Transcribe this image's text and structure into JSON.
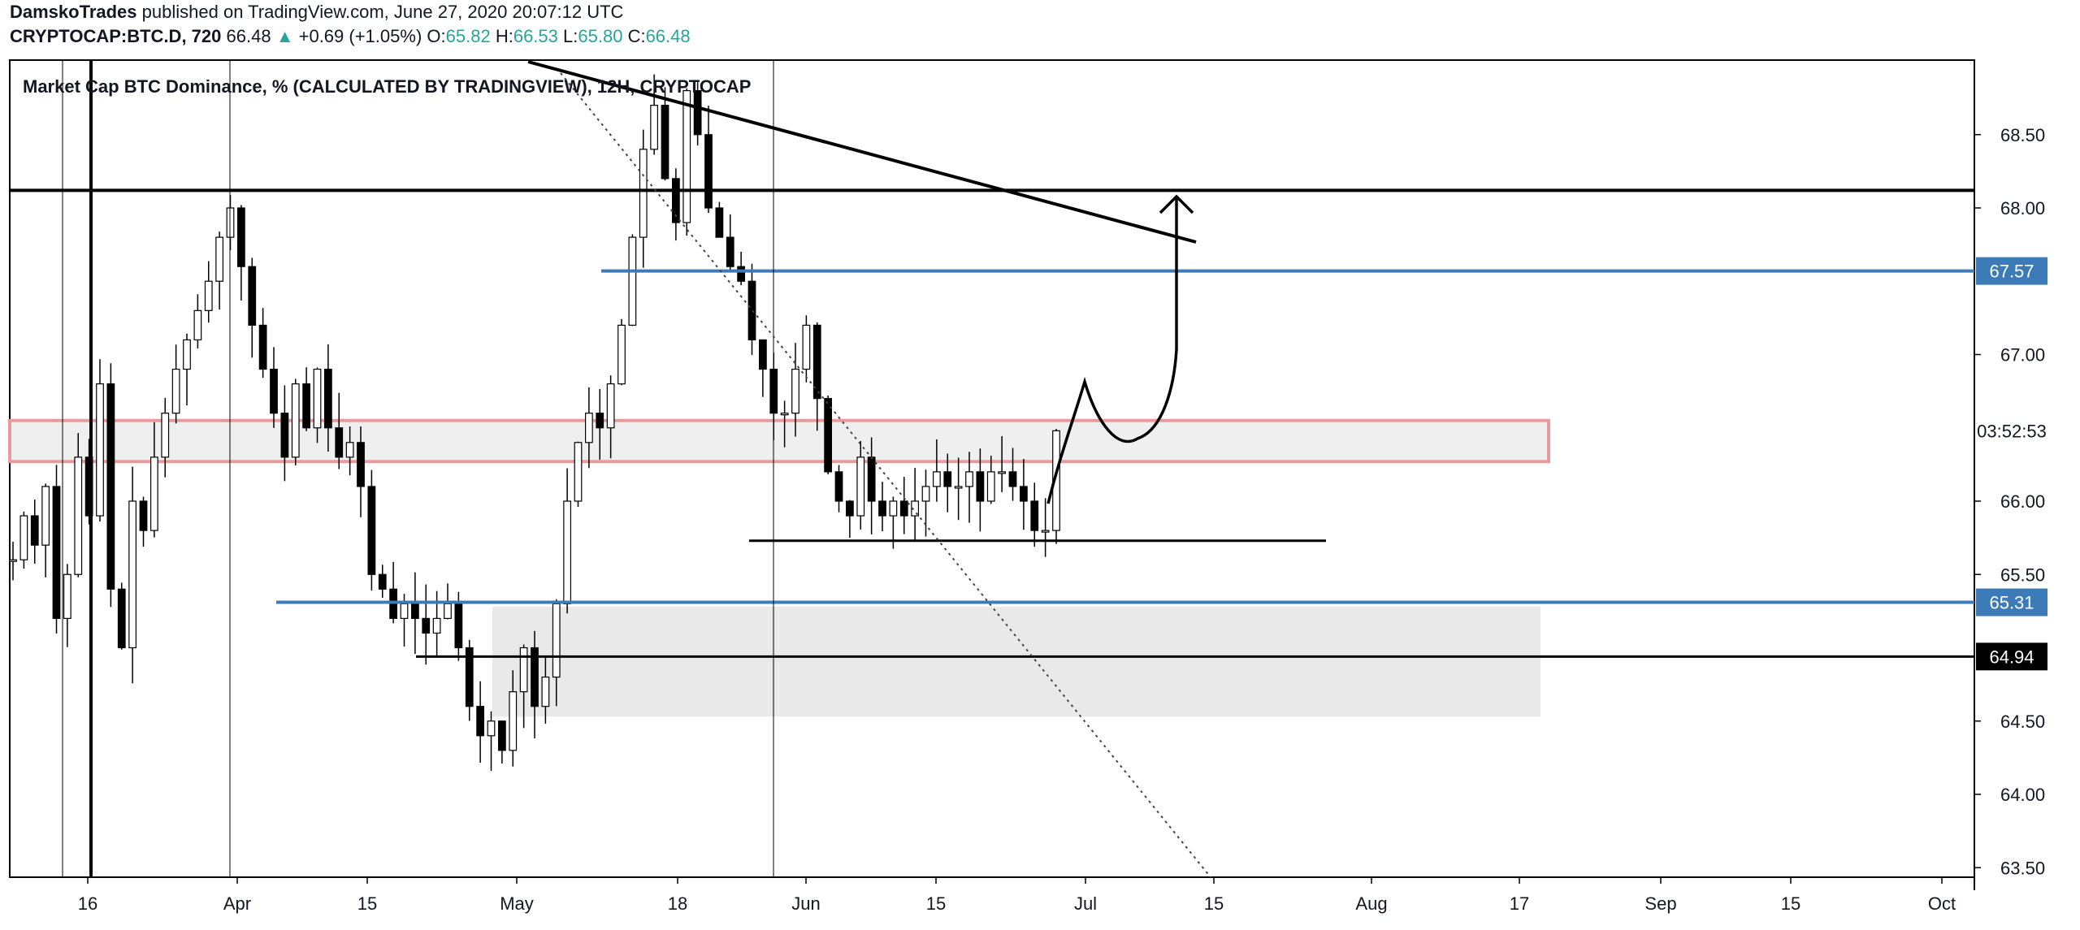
{
  "header": {
    "author": "DamskoTrades",
    "published_text": "published on TradingView.com, June 27, 2020 20:07:12 UTC",
    "symbol": "CRYPTOCAP:BTC.D, 720",
    "last": "66.48",
    "change_arrow": "▲",
    "change": "+0.69 (+1.05%)",
    "o_label": "O:",
    "o_value": "65.82",
    "h_label": "H:",
    "h_value": "66.53",
    "l_label": "L:",
    "l_value": "65.80",
    "c_label": "C:",
    "c_value": "66.48"
  },
  "chart_title": "Market Cap BTC Dominance, % (CALCULATED BY TRADINGVIEW), 12H, CRYPTOCAP",
  "colors": {
    "blue_line": "#3d7ab8",
    "pink_box": "#e99a9c",
    "zone_fill": "#e9e9e9",
    "axis_text": "#131722"
  },
  "chart_data": {
    "type": "candlestick",
    "title": "Market Cap BTC Dominance, % (CALCULATED BY TRADINGVIEW), 12H, CRYPTOCAP",
    "y_range": [
      63.45,
      69.0
    ],
    "y_ticks": [
      "68.50",
      "68.00",
      "67.00",
      "66.00",
      "65.50",
      "64.50",
      "64.00",
      "63.50"
    ],
    "x_ticks": [
      "16",
      "Apr",
      "15",
      "May",
      "18",
      "Jun",
      "15",
      "Jul",
      "15",
      "Aug",
      "17",
      "Sep",
      "15",
      "Oct"
    ],
    "price_tags": [
      {
        "label": "67.57",
        "value": 67.57,
        "style": "blue"
      },
      {
        "label": "03:52:53",
        "value": 66.48,
        "style": "plain"
      },
      {
        "label": "65.31",
        "value": 65.31,
        "style": "blue"
      },
      {
        "label": "64.94",
        "value": 64.94,
        "style": "black"
      }
    ],
    "horizontal_levels": [
      {
        "value": 68.12,
        "style": "black"
      },
      {
        "value": 67.57,
        "style": "blue"
      },
      {
        "value": 65.31,
        "style": "blue"
      },
      {
        "value": 64.94,
        "style": "black"
      },
      {
        "value": 65.73,
        "style": "black"
      }
    ],
    "zones": [
      {
        "from": 66.27,
        "to": 66.55,
        "style": "pink-outlined"
      },
      {
        "from": 64.53,
        "to": 65.28,
        "style": "gray"
      }
    ],
    "close_series": [
      65.6,
      65.9,
      65.7,
      66.1,
      65.2,
      65.5,
      66.3,
      65.9,
      66.8,
      65.4,
      65.0,
      66.0,
      65.8,
      66.3,
      66.6,
      66.9,
      67.1,
      67.3,
      67.5,
      67.8,
      68.0,
      67.6,
      67.2,
      66.9,
      66.6,
      66.3,
      66.8,
      66.5,
      66.9,
      66.5,
      66.3,
      66.4,
      66.1,
      65.5,
      65.4,
      65.2,
      65.3,
      65.2,
      65.1,
      65.2,
      65.3,
      65.0,
      64.6,
      64.4,
      64.5,
      64.3,
      64.7,
      65.0,
      64.6,
      64.8,
      65.3,
      66.0,
      66.4,
      66.6,
      66.5,
      66.8,
      67.2,
      67.8,
      68.4,
      68.7,
      68.2,
      67.9,
      68.8,
      68.5,
      68.0,
      67.8,
      67.6,
      67.5,
      67.1,
      66.9,
      66.6,
      66.6,
      66.9,
      67.2,
      66.7,
      66.2,
      66.0,
      65.9,
      66.3,
      66.0,
      65.9,
      66.0,
      65.9,
      66.0,
      66.1,
      66.2,
      66.1,
      66.1,
      66.2,
      66.0,
      66.2,
      66.2,
      66.1,
      66.0,
      65.8,
      65.8,
      66.48
    ]
  }
}
